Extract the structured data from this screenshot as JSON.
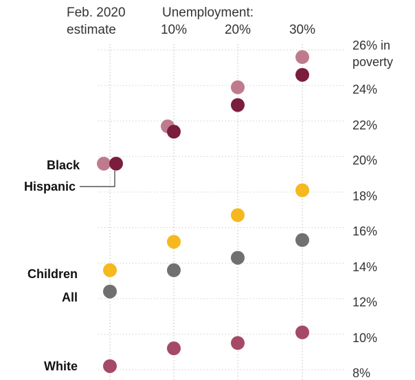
{
  "chart_data": {
    "type": "scatter",
    "header": {
      "estimate_line1": "Feb. 2020",
      "estimate_line2": "estimate",
      "unemployment_label": "Unemployment:"
    },
    "columns": [
      "10%",
      "20%",
      "30%"
    ],
    "y_tick_labels": [
      "26% in",
      "poverty",
      "24%",
      "22%",
      "20%",
      "18%",
      "16%",
      "14%",
      "12%",
      "10%",
      "8%"
    ],
    "y_ticks": [
      26,
      24,
      22,
      20,
      18,
      16,
      14,
      12,
      10,
      8
    ],
    "ylim": [
      7.8,
      27
    ],
    "grid": "dotted vertical lines at each column",
    "group_labels": {
      "black": "Black",
      "hispanic": "Hispanic",
      "children": "Children",
      "all": "All",
      "white": "White"
    },
    "series": [
      {
        "name": "Black",
        "color": "#c07a8e",
        "values": [
          19.6,
          21.7,
          23.9,
          25.6
        ]
      },
      {
        "name": "Hispanic",
        "color": "#7b1d3d",
        "values": [
          19.6,
          21.4,
          22.9,
          24.6
        ]
      },
      {
        "name": "Children",
        "color": "#f5b81e",
        "values": [
          13.6,
          15.2,
          16.7,
          18.1
        ]
      },
      {
        "name": "All",
        "color": "#707070",
        "values": [
          12.4,
          13.6,
          14.3,
          15.3
        ]
      },
      {
        "name": "White",
        "color": "#a54a66",
        "values": [
          8.2,
          9.2,
          9.5,
          10.1
        ]
      }
    ]
  }
}
